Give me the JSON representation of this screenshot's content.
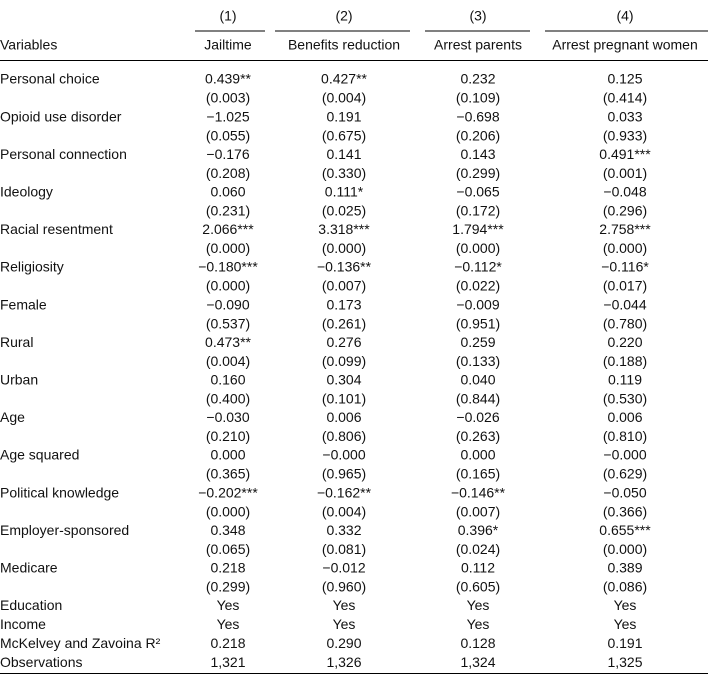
{
  "table": {
    "column_numbers": [
      "(1)",
      "(2)",
      "(3)",
      "(4)"
    ],
    "stub_header": "Variables",
    "columns": [
      "Jailtime",
      "Benefits reduction",
      "Arrest parents",
      "Arrest pregnant women"
    ],
    "rows": [
      {
        "label": "Personal choice",
        "coefficients": [
          "0.439**",
          "0.427**",
          "0.232",
          "0.125"
        ],
        "p_values": [
          "(0.003)",
          "(0.004)",
          "(0.109)",
          "(0.414)"
        ]
      },
      {
        "label": "Opioid use disorder",
        "coefficients": [
          "−1.025",
          "0.191",
          "−0.698",
          "0.033"
        ],
        "p_values": [
          "(0.055)",
          "(0.675)",
          "(0.206)",
          "(0.933)"
        ]
      },
      {
        "label": "Personal connection",
        "coefficients": [
          "−0.176",
          "0.141",
          "0.143",
          "0.491***"
        ],
        "p_values": [
          "(0.208)",
          "(0.330)",
          "(0.299)",
          "(0.001)"
        ]
      },
      {
        "label": "Ideology",
        "coefficients": [
          "0.060",
          "0.111*",
          "−0.065",
          "−0.048"
        ],
        "p_values": [
          "(0.231)",
          "(0.025)",
          "(0.172)",
          "(0.296)"
        ]
      },
      {
        "label": "Racial resentment",
        "coefficients": [
          "2.066***",
          "3.318***",
          "1.794***",
          "2.758***"
        ],
        "p_values": [
          "(0.000)",
          "(0.000)",
          "(0.000)",
          "(0.000)"
        ]
      },
      {
        "label": "Religiosity",
        "coefficients": [
          "−0.180***",
          "−0.136**",
          "−0.112*",
          "−0.116*"
        ],
        "p_values": [
          "(0.000)",
          "(0.007)",
          "(0.022)",
          "(0.017)"
        ]
      },
      {
        "label": "Female",
        "coefficients": [
          "−0.090",
          "0.173",
          "−0.009",
          "−0.044"
        ],
        "p_values": [
          "(0.537)",
          "(0.261)",
          "(0.951)",
          "(0.780)"
        ]
      },
      {
        "label": "Rural",
        "coefficients": [
          "0.473**",
          "0.276",
          "0.259",
          "0.220"
        ],
        "p_values": [
          "(0.004)",
          "(0.099)",
          "(0.133)",
          "(0.188)"
        ]
      },
      {
        "label": "Urban",
        "coefficients": [
          "0.160",
          "0.304",
          "0.040",
          "0.119"
        ],
        "p_values": [
          "(0.400)",
          "(0.101)",
          "(0.844)",
          "(0.530)"
        ]
      },
      {
        "label": "Age",
        "coefficients": [
          "−0.030",
          "0.006",
          "−0.026",
          "0.006"
        ],
        "p_values": [
          "(0.210)",
          "(0.806)",
          "(0.263)",
          "(0.810)"
        ]
      },
      {
        "label": "Age squared",
        "coefficients": [
          "0.000",
          "−0.000",
          "0.000",
          "−0.000"
        ],
        "p_values": [
          "(0.365)",
          "(0.965)",
          "(0.165)",
          "(0.629)"
        ]
      },
      {
        "label": "Political knowledge",
        "coefficients": [
          "−0.202***",
          "−0.162**",
          "−0.146**",
          "−0.050"
        ],
        "p_values": [
          "(0.000)",
          "(0.004)",
          "(0.007)",
          "(0.366)"
        ]
      },
      {
        "label": "Employer-sponsored",
        "coefficients": [
          "0.348",
          "0.332",
          "0.396*",
          "0.655***"
        ],
        "p_values": [
          "(0.065)",
          "(0.081)",
          "(0.024)",
          "(0.000)"
        ]
      },
      {
        "label": "Medicare",
        "coefficients": [
          "0.218",
          "−0.012",
          "0.112",
          "0.389"
        ],
        "p_values": [
          "(0.299)",
          "(0.960)",
          "(0.605)",
          "(0.086)"
        ]
      }
    ],
    "footer_rows": [
      {
        "label": "Education",
        "values": [
          "Yes",
          "Yes",
          "Yes",
          "Yes"
        ]
      },
      {
        "label": "Income",
        "values": [
          "Yes",
          "Yes",
          "Yes",
          "Yes"
        ]
      },
      {
        "label": "McKelvey and Zavoina R²",
        "values": [
          "0.218",
          "0.290",
          "0.128",
          "0.191"
        ]
      },
      {
        "label": "Observations",
        "values": [
          "1,321",
          "1,326",
          "1,324",
          "1,325"
        ]
      }
    ]
  }
}
